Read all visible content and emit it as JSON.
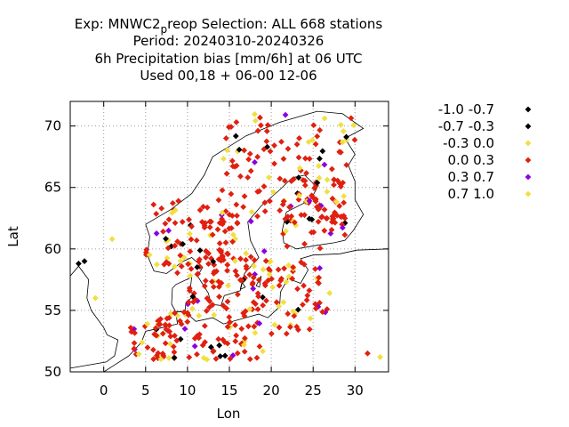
{
  "chart_data": {
    "type": "scatter",
    "title_lines": [
      "Exp: MNWC2preop   Selection: ALL    668 stations",
      "Period: 20240310-20240326",
      "6h Precipitation bias [mm/6h] at  06 UTC",
      "Used  00,18  + 06-00 12-06"
    ],
    "title_exp_prefix": "Exp: MNWC2",
    "title_exp_sub": "p",
    "title_exp_suffix": "reop   Selection: ALL    668 stations",
    "xlabel": "Lon",
    "ylabel": "Lat",
    "xlim": [
      -4,
      34
    ],
    "ylim": [
      50,
      72
    ],
    "xticks": [
      0,
      5,
      10,
      15,
      20,
      25,
      30
    ],
    "yticks": [
      50,
      55,
      60,
      65,
      70
    ],
    "grid": true,
    "legend_position": "right",
    "legend": [
      {
        "label": "-1.0 -0.7",
        "color": "#000000"
      },
      {
        "label": "-0.7 -0.3",
        "color": "#000000"
      },
      {
        "label": "-0.3 0.0",
        "color": "#f0e040"
      },
      {
        "label": "0.0 0.3",
        "color": "#e02010"
      },
      {
        "label": "0.3 0.7",
        "color": "#8a00e0"
      },
      {
        "label": "0.7 1.0",
        "color": "#f0e040"
      }
    ]
  }
}
